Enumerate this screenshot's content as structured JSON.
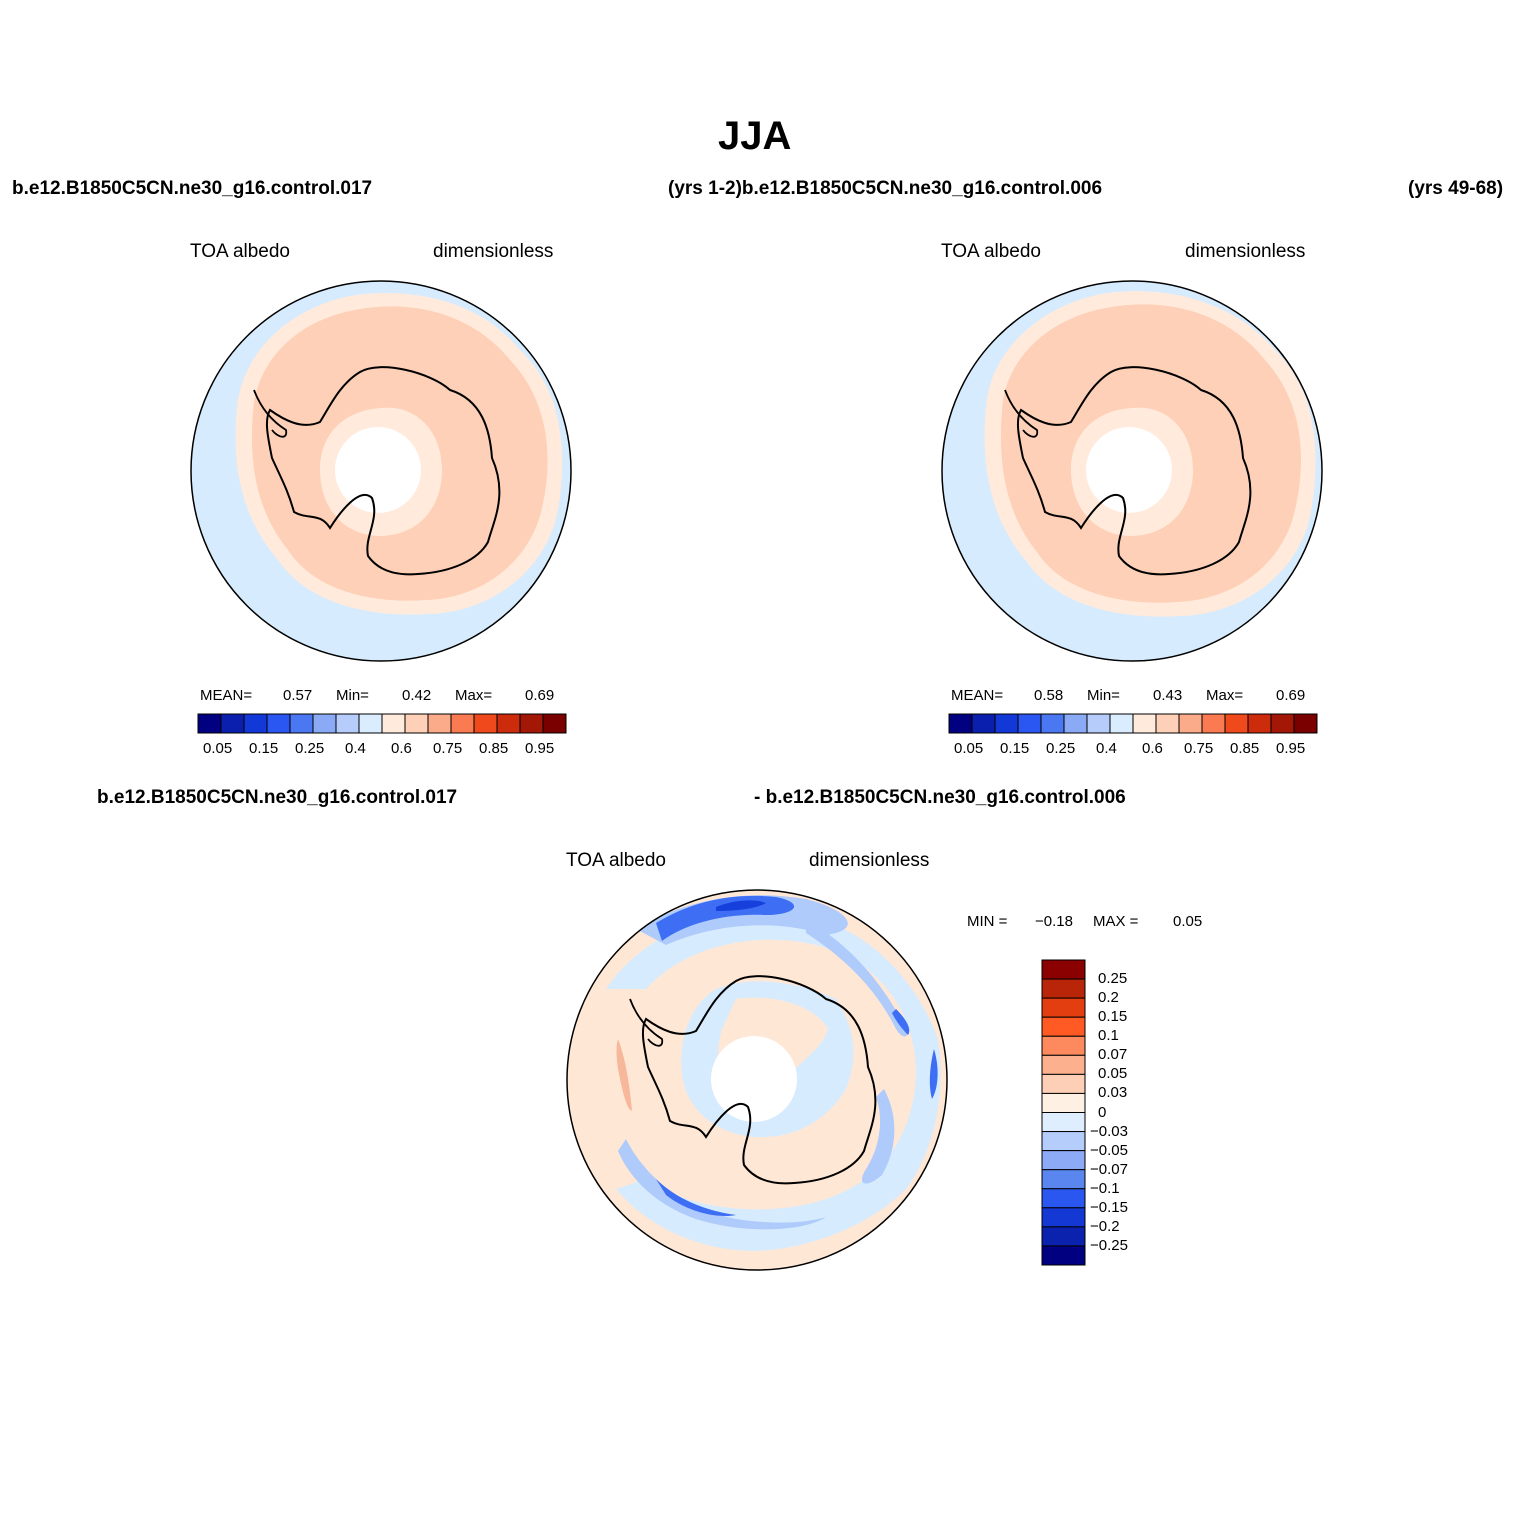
{
  "page": {
    "title": "JJA",
    "top_left_case": "b.e12.B1850C5CN.ne30_g16.control.017",
    "top_mid_case": "(yrs 1-2)b.e12.B1850C5CN.ne30_g16.control.006",
    "top_right_case": "(yrs 49-68)",
    "bottom_left_case": "b.e12.B1850C5CN.ne30_g16.control.017",
    "bottom_mid_case": "- b.e12.B1850C5CN.ne30_g16.control.006"
  },
  "colors": {
    "ocean_low": "#d6ebfd",
    "ring_light": "#ffeadb",
    "ring_mid": "#fdd0b7",
    "diff_pos": "#ffe7d6",
    "diff_neg_light": "#d6ebfd",
    "diff_neg_mid": "#aecbfb",
    "diff_neg_strong": "#3d6ef4",
    "diff_neg_deep": "#163fdc",
    "coast": "#000000"
  },
  "panels": [
    {
      "left_label": "TOA albedo",
      "right_label": "dimensionless",
      "mean_label": "MEAN=",
      "mean_value": "0.57",
      "min_label": "Min=",
      "min_value": "0.42",
      "max_label": "Max=",
      "max_value": "0.69"
    },
    {
      "left_label": "TOA albedo",
      "right_label": "dimensionless",
      "mean_label": "MEAN=",
      "mean_value": "0.58",
      "min_label": "Min=",
      "min_value": "0.43",
      "max_label": "Max=",
      "max_value": "0.69"
    }
  ],
  "diff_panel": {
    "left_label": "TOA albedo",
    "right_label": "dimensionless",
    "min_label": "MIN =",
    "min_value": "−0.18",
    "max_label": "MAX =",
    "max_value": "0.05"
  },
  "colorbar_h": {
    "colors": [
      "#000080",
      "#0a1fae",
      "#1338d8",
      "#2a56f2",
      "#4a78f2",
      "#8aaaf5",
      "#b6cdfb",
      "#daedfe",
      "#ffeadb",
      "#fdd0b7",
      "#fcab8a",
      "#fa7a52",
      "#f04a1c",
      "#cc2c0b",
      "#a31707",
      "#7a0000"
    ],
    "labels": [
      "0.05",
      "0.15",
      "0.25",
      "0.4",
      "0.6",
      "0.75",
      "0.85",
      "0.95"
    ]
  },
  "colorbar_v": {
    "colors": [
      "#8b0000",
      "#b82509",
      "#e23e10",
      "#ff5a23",
      "#fc8a5e",
      "#fcb08e",
      "#fdcfb6",
      "#fff0e4",
      "#dfeefe",
      "#b4cdfb",
      "#8caaf5",
      "#5a86f0",
      "#2a57f0",
      "#1438d4",
      "#0a22ad",
      "#000080"
    ],
    "labels": [
      "0.25",
      "0.2",
      "0.15",
      "0.1",
      "0.07",
      "0.05",
      "0.03",
      "0",
      "−0.03",
      "−0.05",
      "−0.07",
      "−0.1",
      "−0.15",
      "−0.2",
      "−0.25"
    ]
  }
}
